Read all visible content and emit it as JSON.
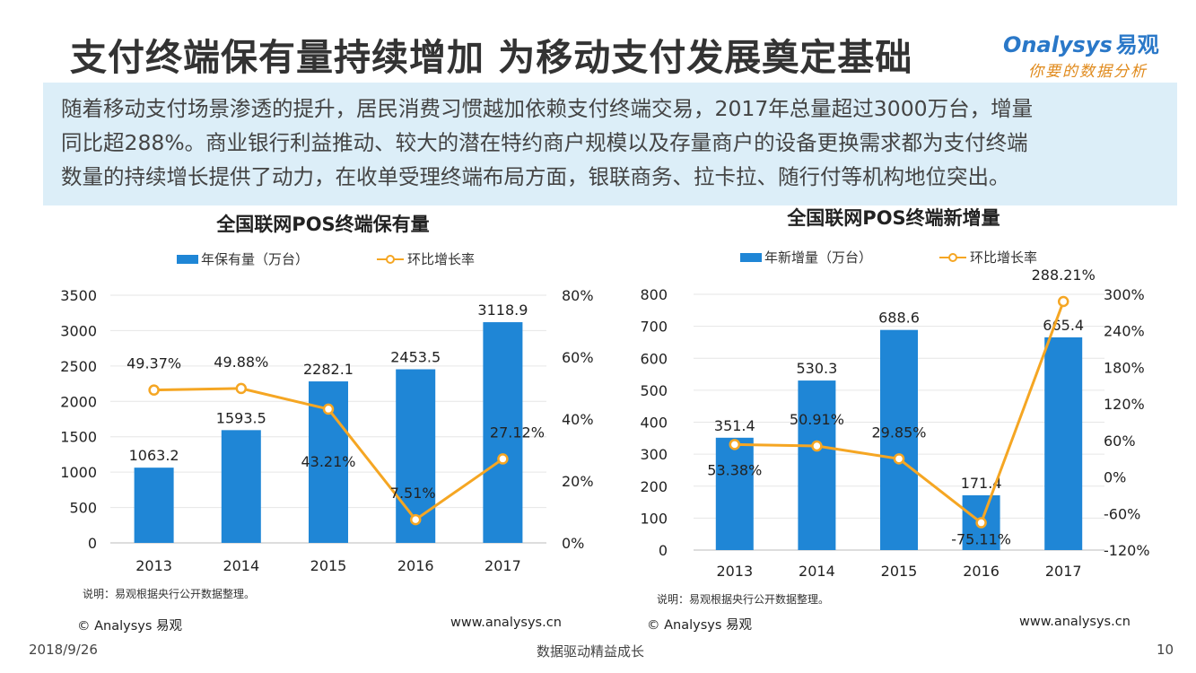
{
  "page": {
    "title": "支付终端保有量持续增加  为移动支付发展奠定基础",
    "summary_lines": [
      "随着移动支付场景渗透的提升，居民消费习惯越加依赖支付终端交易，2017年总量超过3000万台，增量",
      "同比超288%。商业银行利益推动、较大的潜在特约商户规模以及存量商户的设备更换需求都为支付终端",
      "数量的持续增长提供了动力，在收单受理终端布局方面，银联商务、拉卡拉、随行付等机构地位突出。"
    ],
    "logo_top": "nalysys",
    "logo_top_cn": "易观",
    "logo_bottom": "你要的数据分析",
    "footer_date": "2018/9/26",
    "footer_slogan": "数据驱动精益成长",
    "footer_page": "10"
  },
  "panels": [
    {
      "note": "说明：易观根据央行公开数据整理。",
      "credit_left": "© Analysys 易观",
      "credit_right": "www.analysys.cn"
    },
    {
      "note": "说明：易观根据央行公开数据整理。",
      "credit_left": "© Analysys 易观",
      "credit_right": "www.analysys.cn"
    }
  ],
  "colors": {
    "bar": "#1f86d6",
    "line": "#f5a623",
    "grid": "#e6e6e6",
    "summary_bg": "#dceef8"
  },
  "chart_data": [
    {
      "type": "bar",
      "title": "全国联网POS终端保有量",
      "categories": [
        "2013",
        "2014",
        "2015",
        "2016",
        "2017"
      ],
      "series": [
        {
          "name": "年保有量（万台）",
          "kind": "bar",
          "axis": "left",
          "values": [
            1063.2,
            1593.5,
            2282.1,
            2453.5,
            3118.9
          ],
          "labels": [
            "1063.2",
            "1593.5",
            "2282.1",
            "2453.5",
            "3118.9"
          ]
        },
        {
          "name": "环比增长率",
          "kind": "line",
          "axis": "right",
          "values": [
            49.37,
            49.88,
            43.21,
            7.51,
            27.12
          ],
          "labels": [
            "49.37%",
            "49.88%",
            "43.21%",
            "7.51%",
            "27.12%"
          ]
        }
      ],
      "y_left": {
        "min": 0,
        "max": 3500,
        "ticks": [
          "0",
          "500",
          "1000",
          "1500",
          "2000",
          "2500",
          "3000",
          "3500"
        ]
      },
      "y_right": {
        "min": 0,
        "max": 80,
        "ticks": [
          "0%",
          "20%",
          "40%",
          "60%",
          "80%"
        ]
      },
      "legend": "top",
      "grid": true
    },
    {
      "type": "bar",
      "title": "全国联网POS终端新增量",
      "categories": [
        "2013",
        "2014",
        "2015",
        "2016",
        "2017"
      ],
      "series": [
        {
          "name": "年新增量（万台）",
          "kind": "bar",
          "axis": "left",
          "values": [
            351.4,
            530.3,
            688.6,
            171.4,
            665.4
          ],
          "labels": [
            "351.4",
            "530.3",
            "688.6",
            "171.4",
            "665.4"
          ]
        },
        {
          "name": "环比增长率",
          "kind": "line",
          "axis": "right",
          "values": [
            53.38,
            50.91,
            29.85,
            -75.11,
            288.21
          ],
          "labels": [
            "53.38%",
            "50.91%",
            "29.85%",
            "-75.11%",
            "288.21%"
          ]
        }
      ],
      "y_left": {
        "min": 0,
        "max": 800,
        "ticks": [
          "0",
          "100",
          "200",
          "300",
          "400",
          "500",
          "600",
          "700",
          "800"
        ]
      },
      "y_right": {
        "min": -120,
        "max": 300,
        "ticks": [
          "-120%",
          "-60%",
          "0%",
          "60%",
          "120%",
          "180%",
          "240%",
          "300%"
        ]
      },
      "legend": "top",
      "grid": true
    }
  ]
}
